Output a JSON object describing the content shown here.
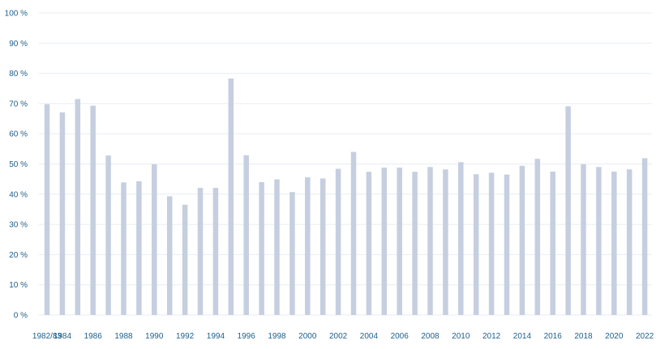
{
  "chart_data": {
    "type": "bar",
    "categories": [
      "1982/83",
      "1984",
      "1985",
      "1986",
      "1987",
      "1988",
      "1989",
      "1990",
      "1991",
      "1992",
      "1993",
      "1994",
      "1995",
      "1996",
      "1997",
      "1998",
      "1999",
      "2000",
      "2001",
      "2002",
      "2003",
      "2004",
      "2005",
      "2006",
      "2007",
      "2008",
      "2009",
      "2010",
      "2011",
      "2012",
      "2013",
      "2014",
      "2015",
      "2016",
      "2017",
      "2018",
      "2019",
      "2020",
      "2021",
      "2022"
    ],
    "x_tick_labels": [
      "1982/83",
      "1984",
      "1986",
      "1988",
      "1990",
      "1992",
      "1994",
      "1996",
      "1998",
      "2000",
      "2002",
      "2004",
      "2006",
      "2008",
      "2010",
      "2012",
      "2014",
      "2016",
      "2018",
      "2020",
      "2022"
    ],
    "values": [
      69.8,
      67.1,
      71.5,
      69.3,
      52.8,
      43.9,
      44.3,
      49.9,
      39.3,
      36.5,
      42.1,
      42.1,
      78.3,
      52.9,
      44.0,
      44.9,
      40.7,
      45.6,
      45.2,
      48.4,
      54.0,
      47.4,
      48.8,
      48.8,
      47.4,
      49.0,
      48.2,
      50.6,
      46.6,
      47.1,
      46.5,
      49.4,
      51.7,
      47.5,
      69.1,
      49.9,
      49.0,
      47.5,
      48.2,
      51.9
    ],
    "y_tick_labels": [
      "0 %",
      "10 %",
      "20 %",
      "30 %",
      "40 %",
      "50 %",
      "60 %",
      "70 %",
      "80 %",
      "90 %",
      "100 %"
    ],
    "ylim": [
      0,
      100
    ],
    "grid": true,
    "colors": {
      "bar": "#c5cfe0",
      "grid": "#e8edf4",
      "tick_label": "#1f5f8b"
    }
  }
}
